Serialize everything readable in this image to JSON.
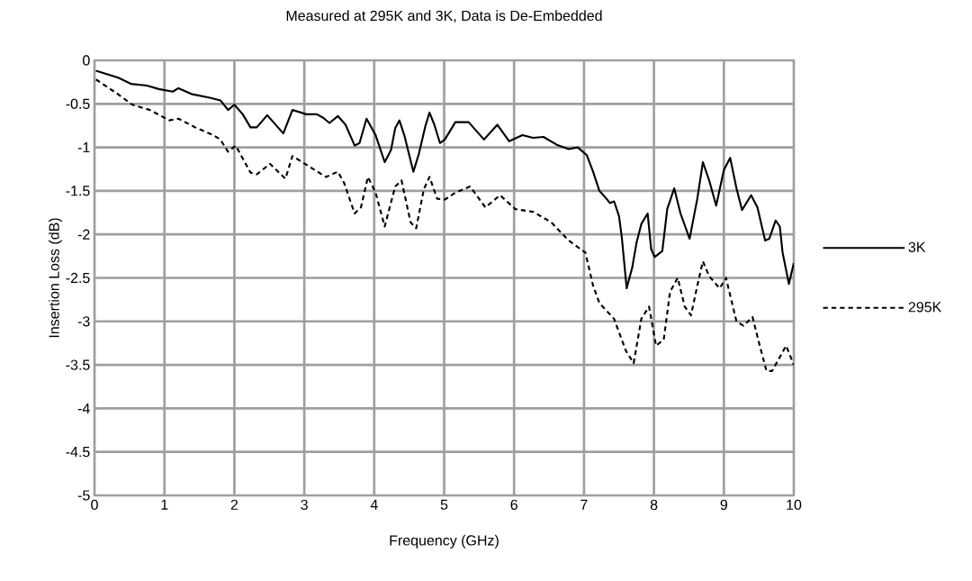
{
  "chart_data": {
    "type": "line",
    "title": "Measured at 295K and 3K, Data is De-Embedded",
    "xlabel": "Frequency (GHz)",
    "ylabel": "Insertion Loss (dB)",
    "xlim": [
      0,
      10
    ],
    "xticks": [
      0,
      1,
      2,
      3,
      4,
      5,
      6,
      7,
      8,
      9,
      10
    ],
    "ylim": [
      -5,
      0
    ],
    "yticks": [
      -5,
      -4.5,
      -4,
      -3.5,
      -3,
      -2.5,
      -2,
      -1.5,
      -1,
      -0.5,
      0
    ],
    "grid": true,
    "legend": "right",
    "marker": "none",
    "series": [
      {
        "name": "3K",
        "color": "#000000",
        "line_style": "solid",
        "x": [
          0.02,
          0.34,
          0.52,
          0.75,
          0.92,
          1.12,
          1.2,
          1.4,
          1.65,
          1.8,
          1.91,
          2.0,
          2.12,
          2.23,
          2.32,
          2.47,
          2.7,
          2.83,
          3.03,
          3.18,
          3.27,
          3.36,
          3.48,
          3.59,
          3.72,
          3.79,
          3.89,
          4.02,
          4.15,
          4.24,
          4.3,
          4.36,
          4.43,
          4.56,
          4.64,
          4.73,
          4.79,
          4.86,
          4.94,
          5.01,
          5.16,
          5.35,
          5.57,
          5.76,
          5.93,
          6.12,
          6.27,
          6.42,
          6.61,
          6.78,
          6.91,
          7.04,
          7.13,
          7.22,
          7.3,
          7.37,
          7.43,
          7.5,
          7.54,
          7.61,
          7.69,
          7.75,
          7.82,
          7.91,
          7.96,
          8.01,
          8.12,
          8.19,
          8.29,
          8.38,
          8.51,
          8.62,
          8.7,
          8.79,
          8.89,
          9.0,
          9.09,
          9.18,
          9.26,
          9.39,
          9.48,
          9.59,
          9.65,
          9.74,
          9.8,
          9.84,
          9.93,
          10.0
        ],
        "values": [
          -0.12,
          -0.2,
          -0.27,
          -0.29,
          -0.33,
          -0.36,
          -0.32,
          -0.39,
          -0.43,
          -0.46,
          -0.57,
          -0.51,
          -0.62,
          -0.77,
          -0.77,
          -0.63,
          -0.84,
          -0.57,
          -0.62,
          -0.62,
          -0.66,
          -0.72,
          -0.64,
          -0.74,
          -0.98,
          -0.95,
          -0.67,
          -0.86,
          -1.17,
          -1.03,
          -0.78,
          -0.69,
          -0.86,
          -1.28,
          -1.07,
          -0.76,
          -0.6,
          -0.74,
          -0.95,
          -0.91,
          -0.71,
          -0.71,
          -0.91,
          -0.74,
          -0.93,
          -0.86,
          -0.89,
          -0.88,
          -0.97,
          -1.02,
          -1.0,
          -1.09,
          -1.28,
          -1.5,
          -1.57,
          -1.64,
          -1.62,
          -1.79,
          -2.03,
          -2.62,
          -2.38,
          -2.1,
          -1.88,
          -1.76,
          -2.17,
          -2.26,
          -2.19,
          -1.71,
          -1.47,
          -1.76,
          -2.05,
          -1.59,
          -1.17,
          -1.38,
          -1.67,
          -1.26,
          -1.12,
          -1.47,
          -1.72,
          -1.55,
          -1.69,
          -2.07,
          -2.05,
          -1.84,
          -1.91,
          -2.21,
          -2.57,
          -2.33
        ]
      },
      {
        "name": "295K",
        "color": "#000000",
        "line_style": "dashed",
        "x": [
          0.02,
          0.32,
          0.54,
          0.79,
          1.07,
          1.2,
          1.44,
          1.7,
          1.8,
          1.91,
          2.02,
          2.23,
          2.32,
          2.51,
          2.73,
          2.83,
          3.03,
          3.31,
          3.48,
          3.57,
          3.72,
          3.81,
          3.91,
          4.02,
          4.15,
          4.3,
          4.39,
          4.52,
          4.6,
          4.71,
          4.79,
          4.9,
          5.01,
          5.16,
          5.37,
          5.59,
          5.8,
          6.02,
          6.27,
          6.53,
          6.78,
          7.02,
          7.13,
          7.22,
          7.43,
          7.6,
          7.71,
          7.82,
          7.93,
          8.03,
          8.14,
          8.23,
          8.34,
          8.44,
          8.53,
          8.62,
          8.7,
          8.79,
          8.94,
          9.03,
          9.18,
          9.28,
          9.41,
          9.5,
          9.61,
          9.69,
          9.89,
          10.0
        ],
        "values": [
          -0.22,
          -0.38,
          -0.51,
          -0.57,
          -0.69,
          -0.67,
          -0.77,
          -0.86,
          -0.91,
          -1.05,
          -0.98,
          -1.29,
          -1.31,
          -1.19,
          -1.36,
          -1.1,
          -1.2,
          -1.34,
          -1.28,
          -1.41,
          -1.76,
          -1.69,
          -1.34,
          -1.52,
          -1.91,
          -1.45,
          -1.38,
          -1.86,
          -1.93,
          -1.48,
          -1.34,
          -1.59,
          -1.6,
          -1.52,
          -1.45,
          -1.69,
          -1.55,
          -1.71,
          -1.74,
          -1.86,
          -2.07,
          -2.21,
          -2.59,
          -2.79,
          -2.97,
          -3.34,
          -3.48,
          -2.97,
          -2.83,
          -3.28,
          -3.21,
          -2.66,
          -2.5,
          -2.83,
          -2.93,
          -2.59,
          -2.31,
          -2.48,
          -2.62,
          -2.5,
          -3.0,
          -3.05,
          -2.95,
          -3.24,
          -3.57,
          -3.57,
          -3.28,
          -3.5
        ]
      }
    ]
  }
}
